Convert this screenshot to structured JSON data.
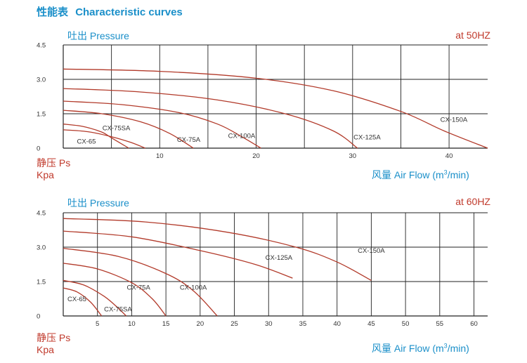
{
  "page_title": {
    "cn": "性能表",
    "en": "Characteristic curves"
  },
  "colors": {
    "title": "#1a8fc9",
    "accent_red": "#c0392b",
    "curve": "#b23a2a",
    "grid": "#222222"
  },
  "chart_data": [
    {
      "type": "line",
      "title": "吐出 Pressure",
      "frequency_label": "at 50HZ",
      "ylabel_cn": "静压 Ps",
      "ylabel_unit": "Kpa",
      "xlabel": "风量 Air Flow (m³/min)",
      "xlabel_prefix": "风量 Air Flow (m",
      "xlabel_sup": "3",
      "xlabel_suffix": "/min)",
      "xlim": [
        0,
        44
      ],
      "ylim": [
        0,
        4.5
      ],
      "xticks": [
        10,
        20,
        30,
        40
      ],
      "yticks": [
        "0",
        "1.5",
        "3.0",
        "4.5"
      ],
      "grid": true,
      "series": [
        {
          "name": "CX-65",
          "x": [
            0,
            2,
            4,
            5,
            6.8
          ],
          "y": [
            1.05,
            0.95,
            0.7,
            0.45,
            0
          ],
          "label_at": [
            2.4,
            0.2
          ]
        },
        {
          "name": "CX-75SA",
          "x": [
            0,
            2.5,
            5,
            7,
            8.5
          ],
          "y": [
            0.8,
            0.72,
            0.5,
            0.25,
            0
          ],
          "label_at": [
            5.5,
            0.78
          ]
        },
        {
          "name": "CX-75A",
          "x": [
            0,
            4,
            8,
            11,
            13.5
          ],
          "y": [
            1.65,
            1.5,
            1.15,
            0.65,
            0
          ],
          "label_at": [
            13,
            0.28
          ]
        },
        {
          "name": "CX-100A",
          "x": [
            0,
            6,
            12,
            16,
            18.5,
            20.5
          ],
          "y": [
            2.05,
            1.9,
            1.55,
            1.05,
            0.5,
            0
          ],
          "label_at": [
            18.5,
            0.45
          ]
        },
        {
          "name": "CX-125A",
          "x": [
            0,
            8,
            16,
            23,
            28,
            30.5
          ],
          "y": [
            2.6,
            2.45,
            2.1,
            1.5,
            0.75,
            0
          ],
          "label_at": [
            31.5,
            0.38
          ]
        },
        {
          "name": "CX-150A",
          "x": [
            0,
            10,
            20,
            28,
            35,
            39.5,
            44
          ],
          "y": [
            3.45,
            3.35,
            3.05,
            2.5,
            1.6,
            0.75,
            0
          ],
          "label_at": [
            40.5,
            1.15
          ]
        }
      ]
    },
    {
      "type": "line",
      "title": "吐出 Pressure",
      "frequency_label": "at 60HZ",
      "ylabel_cn": "静压 Ps",
      "ylabel_unit": "Kpa",
      "xlabel": "风量 Air Flow (m³/min)",
      "xlabel_prefix": "风量 Air Flow (m",
      "xlabel_sup": "3",
      "xlabel_suffix": "/min)",
      "xlim": [
        0,
        62
      ],
      "ylim": [
        0,
        4.5
      ],
      "xticks": [
        5,
        10,
        15,
        20,
        25,
        30,
        35,
        40,
        45,
        50,
        55,
        60
      ],
      "yticks": [
        "0",
        "1.5",
        "3.0",
        "4.5"
      ],
      "grid": true,
      "series": [
        {
          "name": "CX-65",
          "x": [
            0,
            2,
            4,
            5.6
          ],
          "y": [
            1.22,
            1.05,
            0.6,
            0
          ],
          "label_at": [
            2,
            0.65
          ]
        },
        {
          "name": "CX-75SA",
          "x": [
            0,
            3,
            6,
            8,
            9.2
          ],
          "y": [
            1.55,
            1.35,
            0.85,
            0.35,
            0
          ],
          "label_at": [
            8,
            0.2
          ]
        },
        {
          "name": "CX-75A",
          "x": [
            0,
            5,
            10,
            13,
            15
          ],
          "y": [
            2.3,
            2.05,
            1.45,
            0.75,
            0
          ],
          "label_at": [
            11,
            1.15
          ]
        },
        {
          "name": "CX-100A",
          "x": [
            0,
            8,
            15,
            19,
            22.5
          ],
          "y": [
            2.95,
            2.6,
            1.85,
            1.1,
            0
          ],
          "label_at": [
            19,
            1.15
          ]
        },
        {
          "name": "CX-125A",
          "x": [
            0,
            10,
            20,
            28,
            33.5
          ],
          "y": [
            3.7,
            3.45,
            2.85,
            2.25,
            1.65
          ],
          "label_at": [
            31.5,
            2.45
          ]
        },
        {
          "name": "CX-150A",
          "x": [
            0,
            12,
            24,
            34,
            40,
            45
          ],
          "y": [
            4.25,
            4.1,
            3.65,
            3.0,
            2.35,
            1.55
          ],
          "label_at": [
            45,
            2.75
          ]
        }
      ]
    }
  ]
}
